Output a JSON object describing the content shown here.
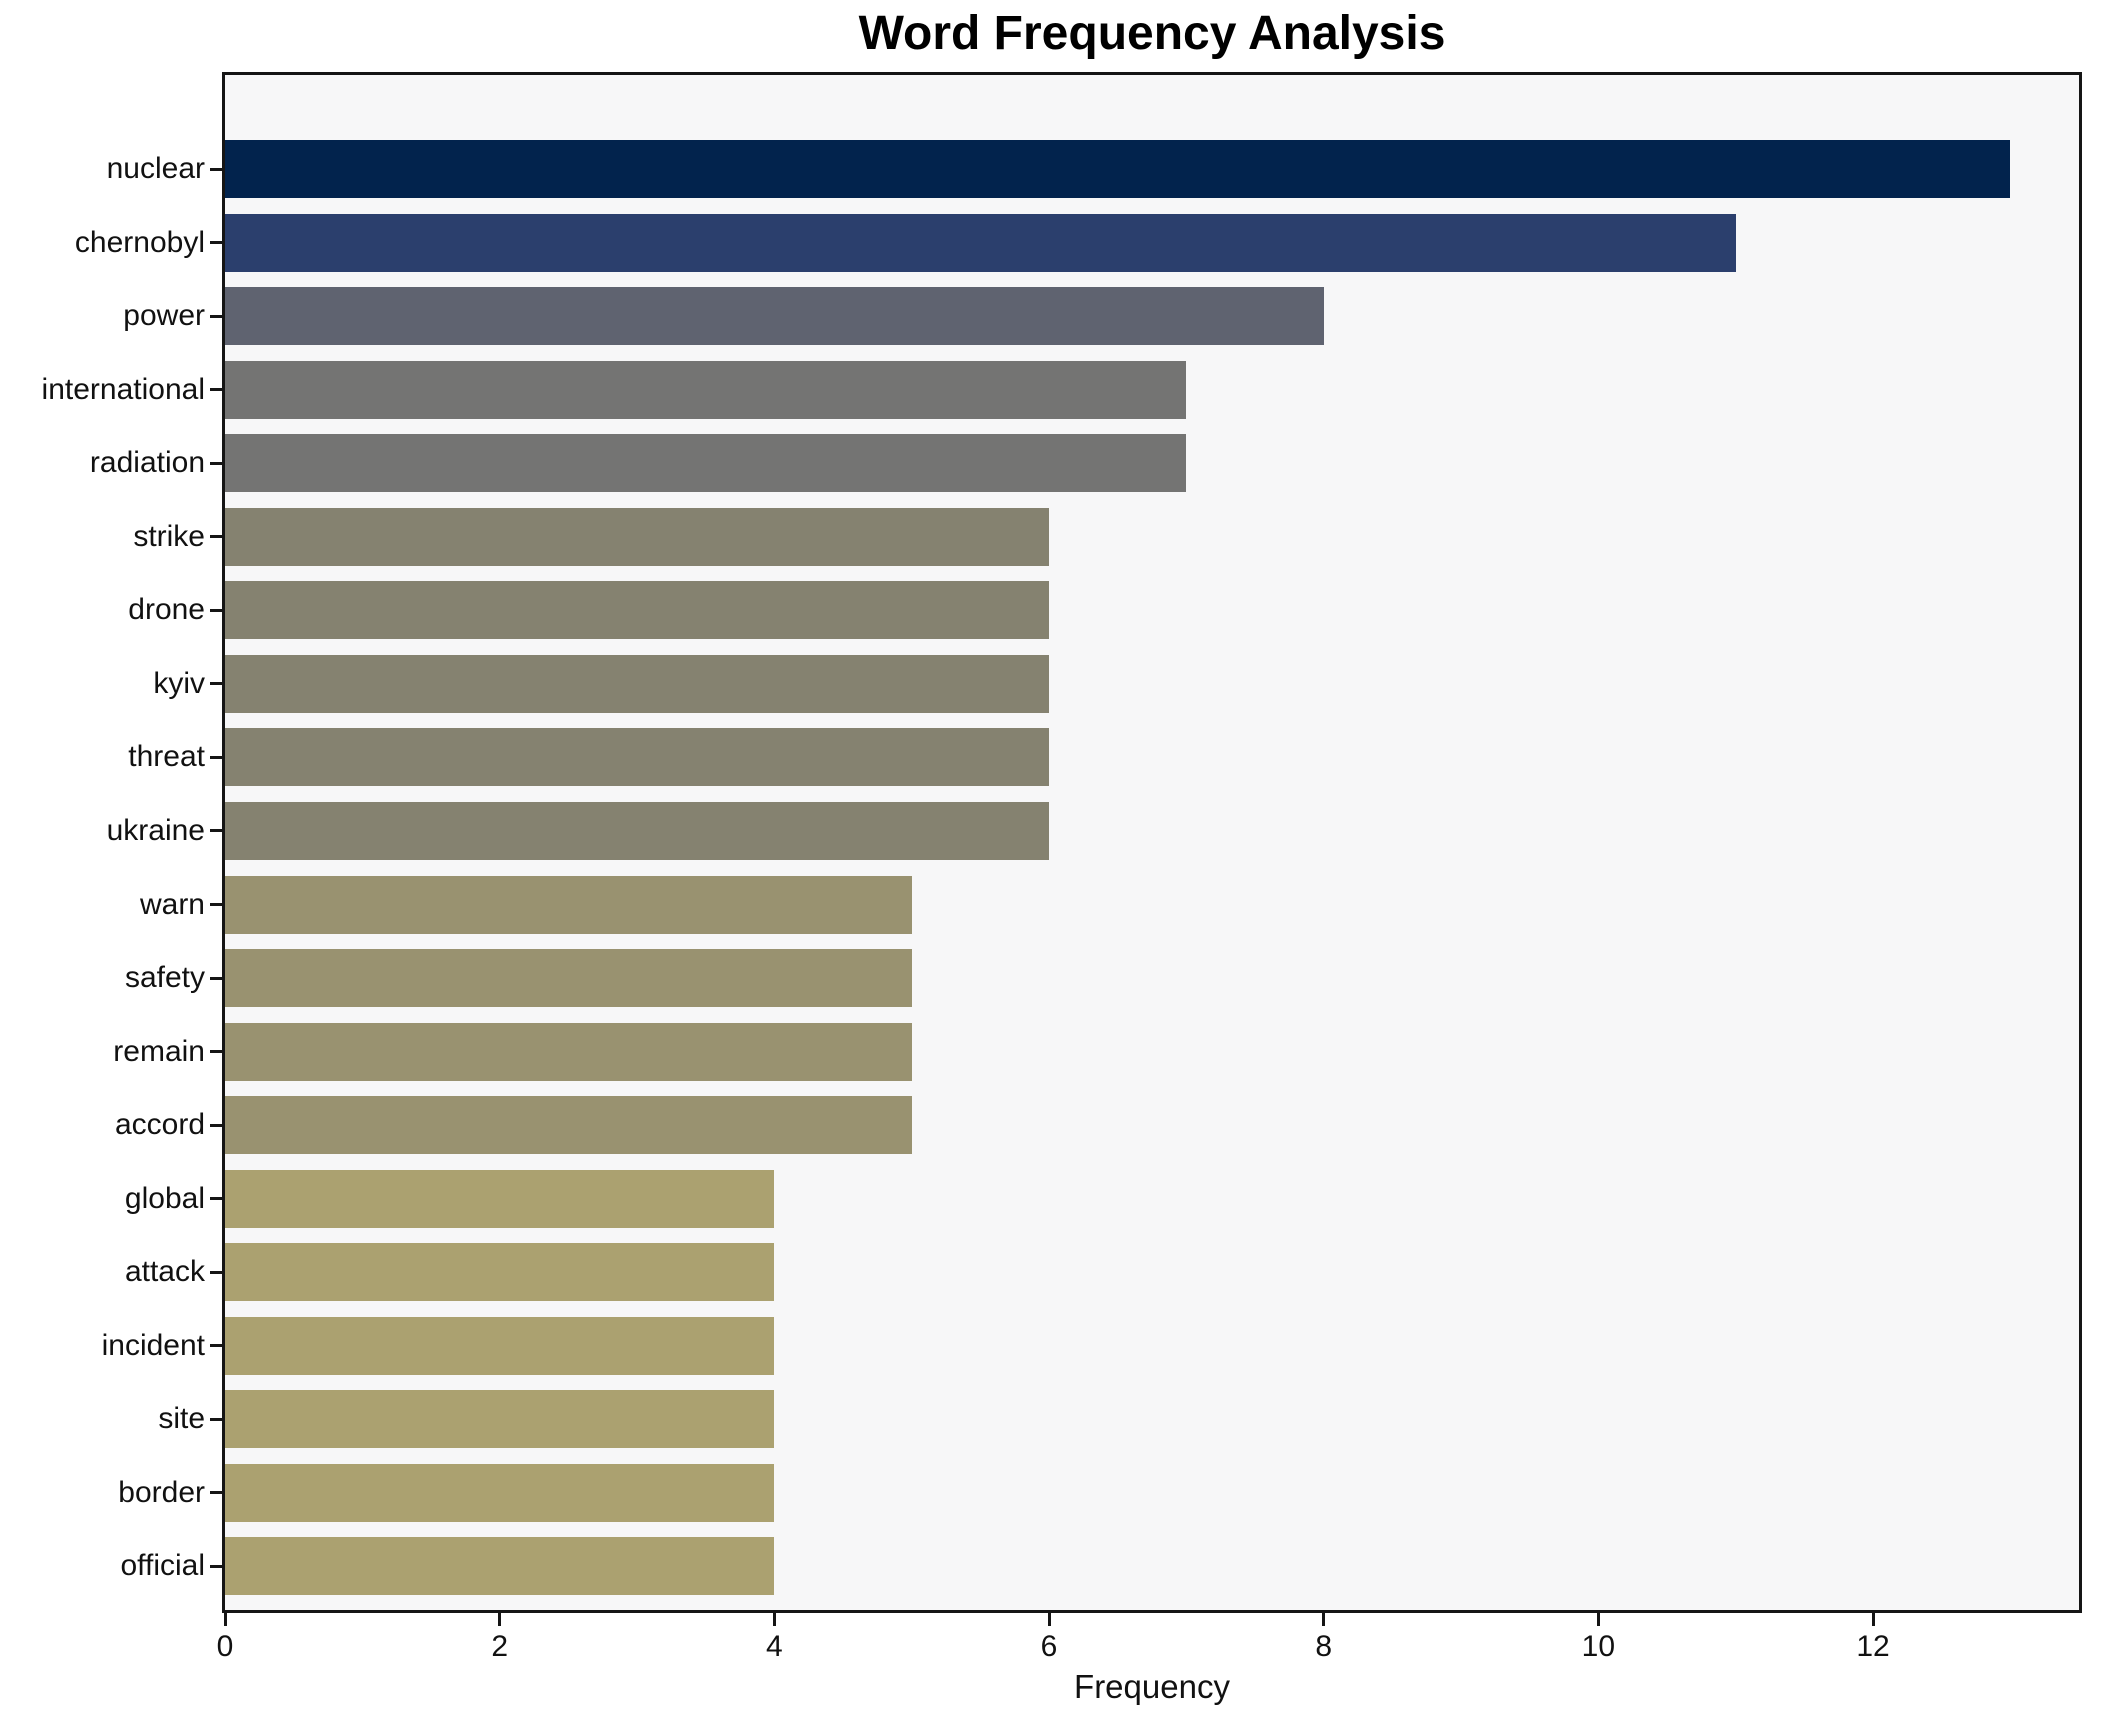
{
  "chart_data": {
    "type": "bar",
    "orientation": "horizontal",
    "title": "Word Frequency Analysis",
    "xlabel": "Frequency",
    "ylabel": "",
    "categories": [
      "nuclear",
      "chernobyl",
      "power",
      "international",
      "radiation",
      "strike",
      "drone",
      "kyiv",
      "threat",
      "ukraine",
      "warn",
      "safety",
      "remain",
      "accord",
      "global",
      "attack",
      "incident",
      "site",
      "border",
      "official"
    ],
    "values": [
      13,
      11,
      8,
      7,
      7,
      6,
      6,
      6,
      6,
      6,
      5,
      5,
      5,
      5,
      4,
      4,
      4,
      4,
      4,
      4
    ],
    "bar_colors": [
      "#02234d",
      "#2b3f6d",
      "#5f6370",
      "#747473",
      "#747473",
      "#858270",
      "#858270",
      "#858270",
      "#858270",
      "#858270",
      "#999270",
      "#999270",
      "#999270",
      "#999270",
      "#aba170",
      "#aba170",
      "#aba170",
      "#aba170",
      "#aba170",
      "#aba170"
    ],
    "xlim": [
      0,
      13.5
    ],
    "xticks": [
      0,
      2,
      4,
      6,
      8,
      10,
      12
    ],
    "grid": false,
    "legend": "none",
    "plot_background": "#f7f7f8",
    "figure_background": "#ffffff",
    "spine_color": "#151515"
  }
}
